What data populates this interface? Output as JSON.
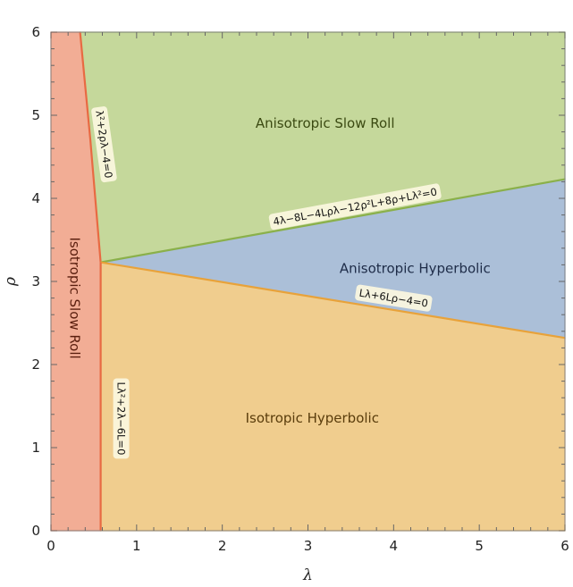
{
  "chart_data": {
    "type": "area",
    "xlabel": "λ",
    "ylabel": "ρ",
    "xlim": [
      0,
      6
    ],
    "ylim": [
      0,
      6
    ],
    "xticks": [
      "0",
      "1",
      "2",
      "3",
      "4",
      "5",
      "6"
    ],
    "yticks": [
      "0",
      "1",
      "2",
      "3",
      "4",
      "5",
      "6"
    ],
    "grid": false,
    "regions": [
      {
        "name": "Isotropic Slow Roll",
        "color": "#f2ad95",
        "stroke": "#e86a43",
        "polygon": [
          [
            0,
            0
          ],
          [
            0,
            6
          ],
          [
            0.34,
            6
          ],
          [
            0.46,
            4.7
          ],
          [
            0.58,
            3.23
          ],
          [
            0.58,
            0
          ]
        ]
      },
      {
        "name": "Anisotropic Slow Roll",
        "color": "#c5d89b",
        "stroke": "#8ab04a",
        "polygon": [
          [
            0.34,
            6
          ],
          [
            6,
            6
          ],
          [
            6,
            4.23
          ],
          [
            0.58,
            3.23
          ],
          [
            0.46,
            4.7
          ]
        ]
      },
      {
        "name": "Anisotropic Hyperbolic",
        "color": "#abbfd8",
        "stroke": "#6b8fc9",
        "polygon": [
          [
            0.58,
            3.23
          ],
          [
            6,
            4.23
          ],
          [
            6,
            2.32
          ]
        ]
      },
      {
        "name": "Isotropic Hyperbolic",
        "color": "#f0cd8e",
        "stroke": "#e8a23a",
        "polygon": [
          [
            0.58,
            0
          ],
          [
            0.58,
            3.23
          ],
          [
            6,
            2.32
          ],
          [
            6,
            0
          ]
        ]
      }
    ],
    "curves": [
      {
        "label": "λ²+2ρλ−4=0",
        "points": [
          [
            0.34,
            6
          ],
          [
            0.46,
            4.7
          ],
          [
            0.58,
            3.23
          ]
        ],
        "color": "#e86a43"
      },
      {
        "label": "4λ−8L−4Lρλ−12ρ²L+8ρ+Lλ²=0",
        "points": [
          [
            0.58,
            3.23
          ],
          [
            6,
            4.23
          ]
        ],
        "color": "#8ab04a"
      },
      {
        "label": "Lλ+6Lρ−4=0",
        "points": [
          [
            0.58,
            3.23
          ],
          [
            6,
            2.32
          ]
        ],
        "color": "#e8a23a"
      },
      {
        "label": "Lλ²+2λ−6L=0",
        "points": [
          [
            0.58,
            0
          ],
          [
            0.58,
            3.23
          ]
        ],
        "color": "#e86a43"
      }
    ],
    "region_label_positions": [
      {
        "text": "Anisotropic Slow Roll",
        "x": 3.2,
        "y": 4.9,
        "color": "#3b4a12",
        "rotate": false
      },
      {
        "text": "Anisotropic Hyperbolic",
        "x": 4.25,
        "y": 3.15,
        "color": "#1e2c48",
        "rotate": false
      },
      {
        "text": "Isotropic Hyperbolic",
        "x": 3.05,
        "y": 1.35,
        "color": "#5a3d0c",
        "rotate": false
      },
      {
        "text": "Isotropic Slow Roll",
        "x": 0.27,
        "y": 2.8,
        "color": "#5a1e0e",
        "rotate": true
      }
    ],
    "curve_label_positions": [
      {
        "text": "λ²+2ρλ−4=0",
        "x": 0.62,
        "y": 4.65,
        "angle": 82
      },
      {
        "text": "4λ−8L−4Lρλ−12ρ²L+8ρ+Lλ²=0",
        "x": 3.55,
        "y": 3.9,
        "angle": -10.5
      },
      {
        "text": "Lλ+6Lρ−4=0",
        "x": 4.0,
        "y": 2.8,
        "angle": 9
      },
      {
        "text": "Lλ²+2λ−6L=0",
        "x": 0.82,
        "y": 1.35,
        "angle": 90
      }
    ]
  }
}
